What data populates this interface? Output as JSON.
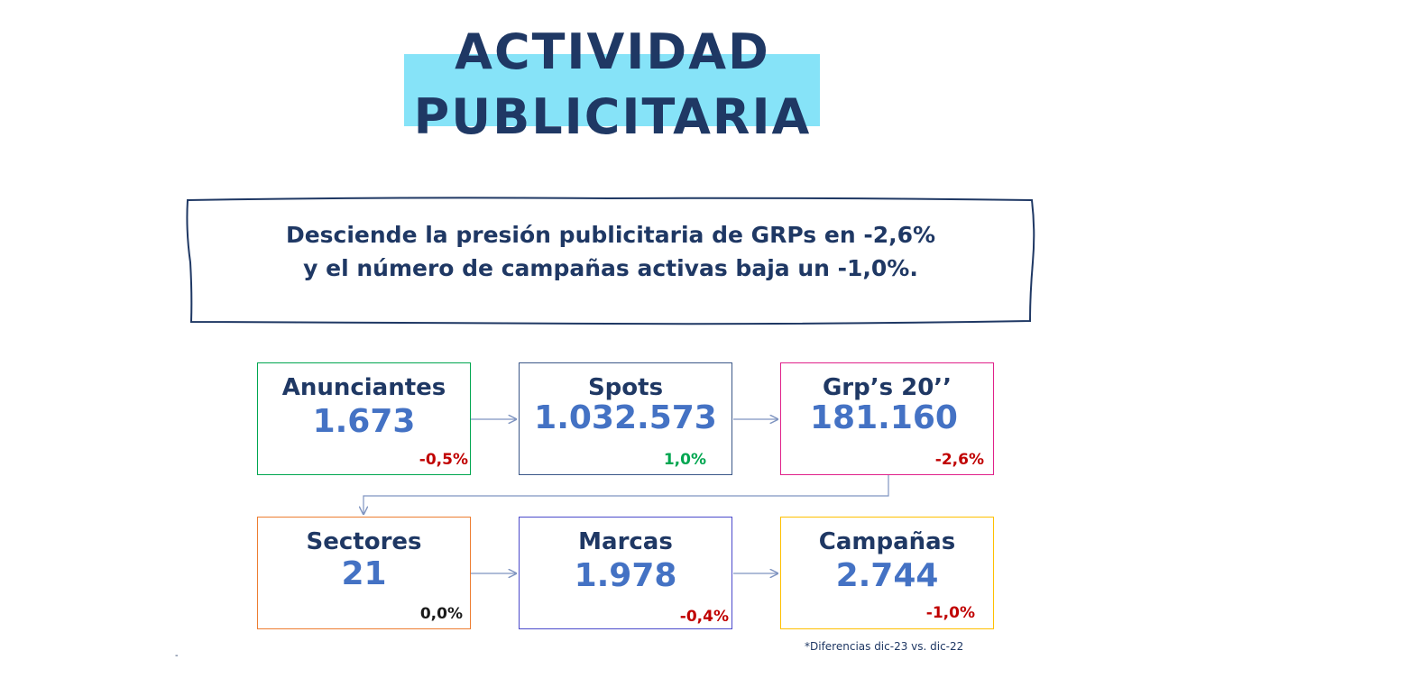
{
  "title": {
    "line1": "ACTIVIDAD",
    "line2": "PUBLICITARIA"
  },
  "headline": {
    "line1": "Desciende la presión publicitaria de GRPs en -2,6%",
    "line2": "y el número de campañas activas baja un -1,0%."
  },
  "cards": [
    {
      "label": "Anunciantes",
      "value": "1.673",
      "change": "-0,5%",
      "border_color": "#00a650"
    },
    {
      "label": "Spots",
      "value": "1.032.573",
      "change": "1,0%",
      "border_color": "#1f3864"
    },
    {
      "label": "Grp’s 20’’",
      "value": "181.160",
      "change": "-2,6%",
      "border_color": "#e0218a"
    },
    {
      "label": "Sectores",
      "value": "21",
      "change": "0,0%",
      "border_color": "#ed7d31"
    },
    {
      "label": "Marcas",
      "value": "1.978",
      "change": "-0,4%",
      "border_color": "#4b4acb"
    },
    {
      "label": "Campañas",
      "value": "2.744",
      "change": "-1,0%",
      "border_color": "#ffc000"
    }
  ],
  "footnote": "*Diferencias dic-23 vs. dic-22",
  "colors": {
    "navy": "#1f3864",
    "value_blue": "#4472c4",
    "title_highlight": "#86e3f8",
    "negative": "#c00000",
    "positive": "#00a650"
  }
}
